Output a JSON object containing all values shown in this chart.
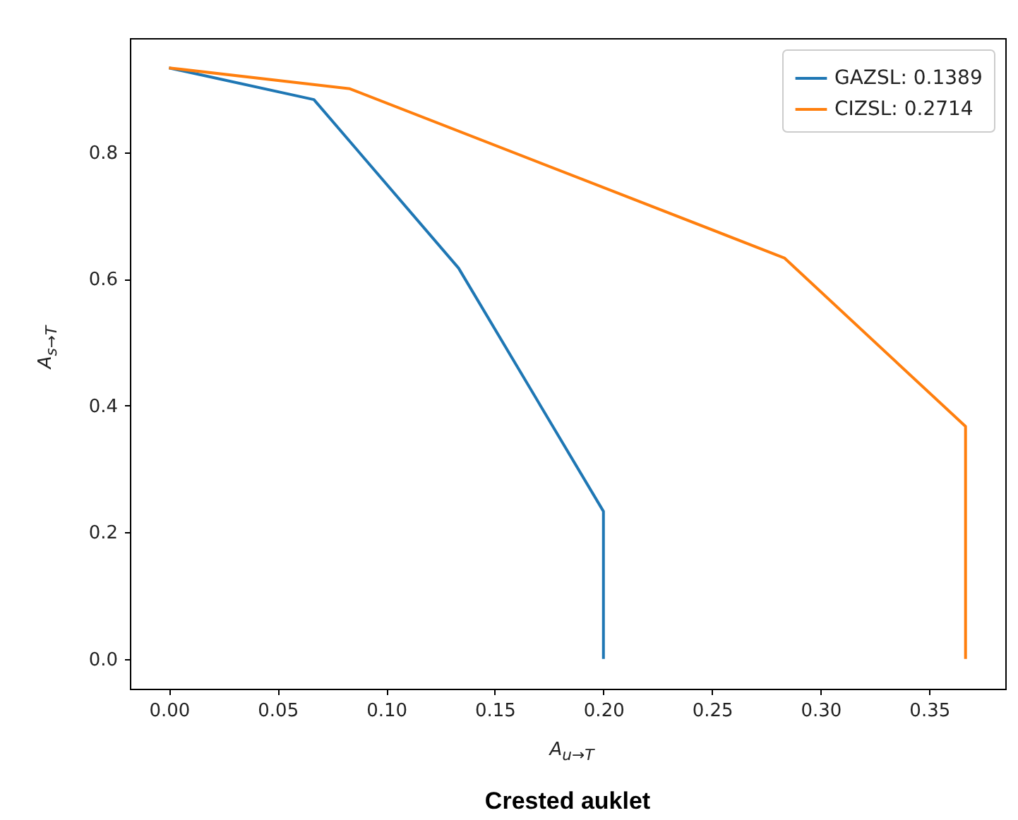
{
  "chart_data": {
    "type": "line",
    "title": "Crested auklet",
    "xlabel": "A$_{u→T}$",
    "ylabel": "A$_{s→T}$",
    "series": [
      {
        "name": "GAZSL: 0.1389",
        "color": "#1f77b4",
        "x": [
          0,
          0.0667,
          0.1333,
          0.2,
          0.2
        ],
        "values": [
          0.933,
          0.883,
          0.617,
          0.233,
          0
        ]
      },
      {
        "name": "CIZSL: 0.2714",
        "color": "#ff7f0e",
        "x": [
          0,
          0.0833,
          0.2833,
          0.3667,
          0.3667
        ],
        "values": [
          0.933,
          0.9,
          0.633,
          0.367,
          0
        ]
      }
    ],
    "xlim": [
      -0.018,
      0.385
    ],
    "ylim": [
      -0.047,
      0.98
    ],
    "xticks": [
      {
        "value": 0,
        "label": "0.00"
      },
      {
        "value": 0.05,
        "label": "0.05"
      },
      {
        "value": 0.1,
        "label": "0.10"
      },
      {
        "value": 0.15,
        "label": "0.15"
      },
      {
        "value": 0.2,
        "label": "0.20"
      },
      {
        "value": 0.25,
        "label": "0.25"
      },
      {
        "value": 0.3,
        "label": "0.30"
      },
      {
        "value": 0.35,
        "label": "0.35"
      }
    ],
    "yticks": [
      {
        "value": 0,
        "label": "0.0"
      },
      {
        "value": 0.2,
        "label": "0.2"
      },
      {
        "value": 0.4,
        "label": "0.4"
      },
      {
        "value": 0.6,
        "label": "0.6"
      },
      {
        "value": 0.8,
        "label": "0.8"
      }
    ],
    "legend": "top right",
    "grid": false,
    "line_style": "solid",
    "marker": "none"
  }
}
